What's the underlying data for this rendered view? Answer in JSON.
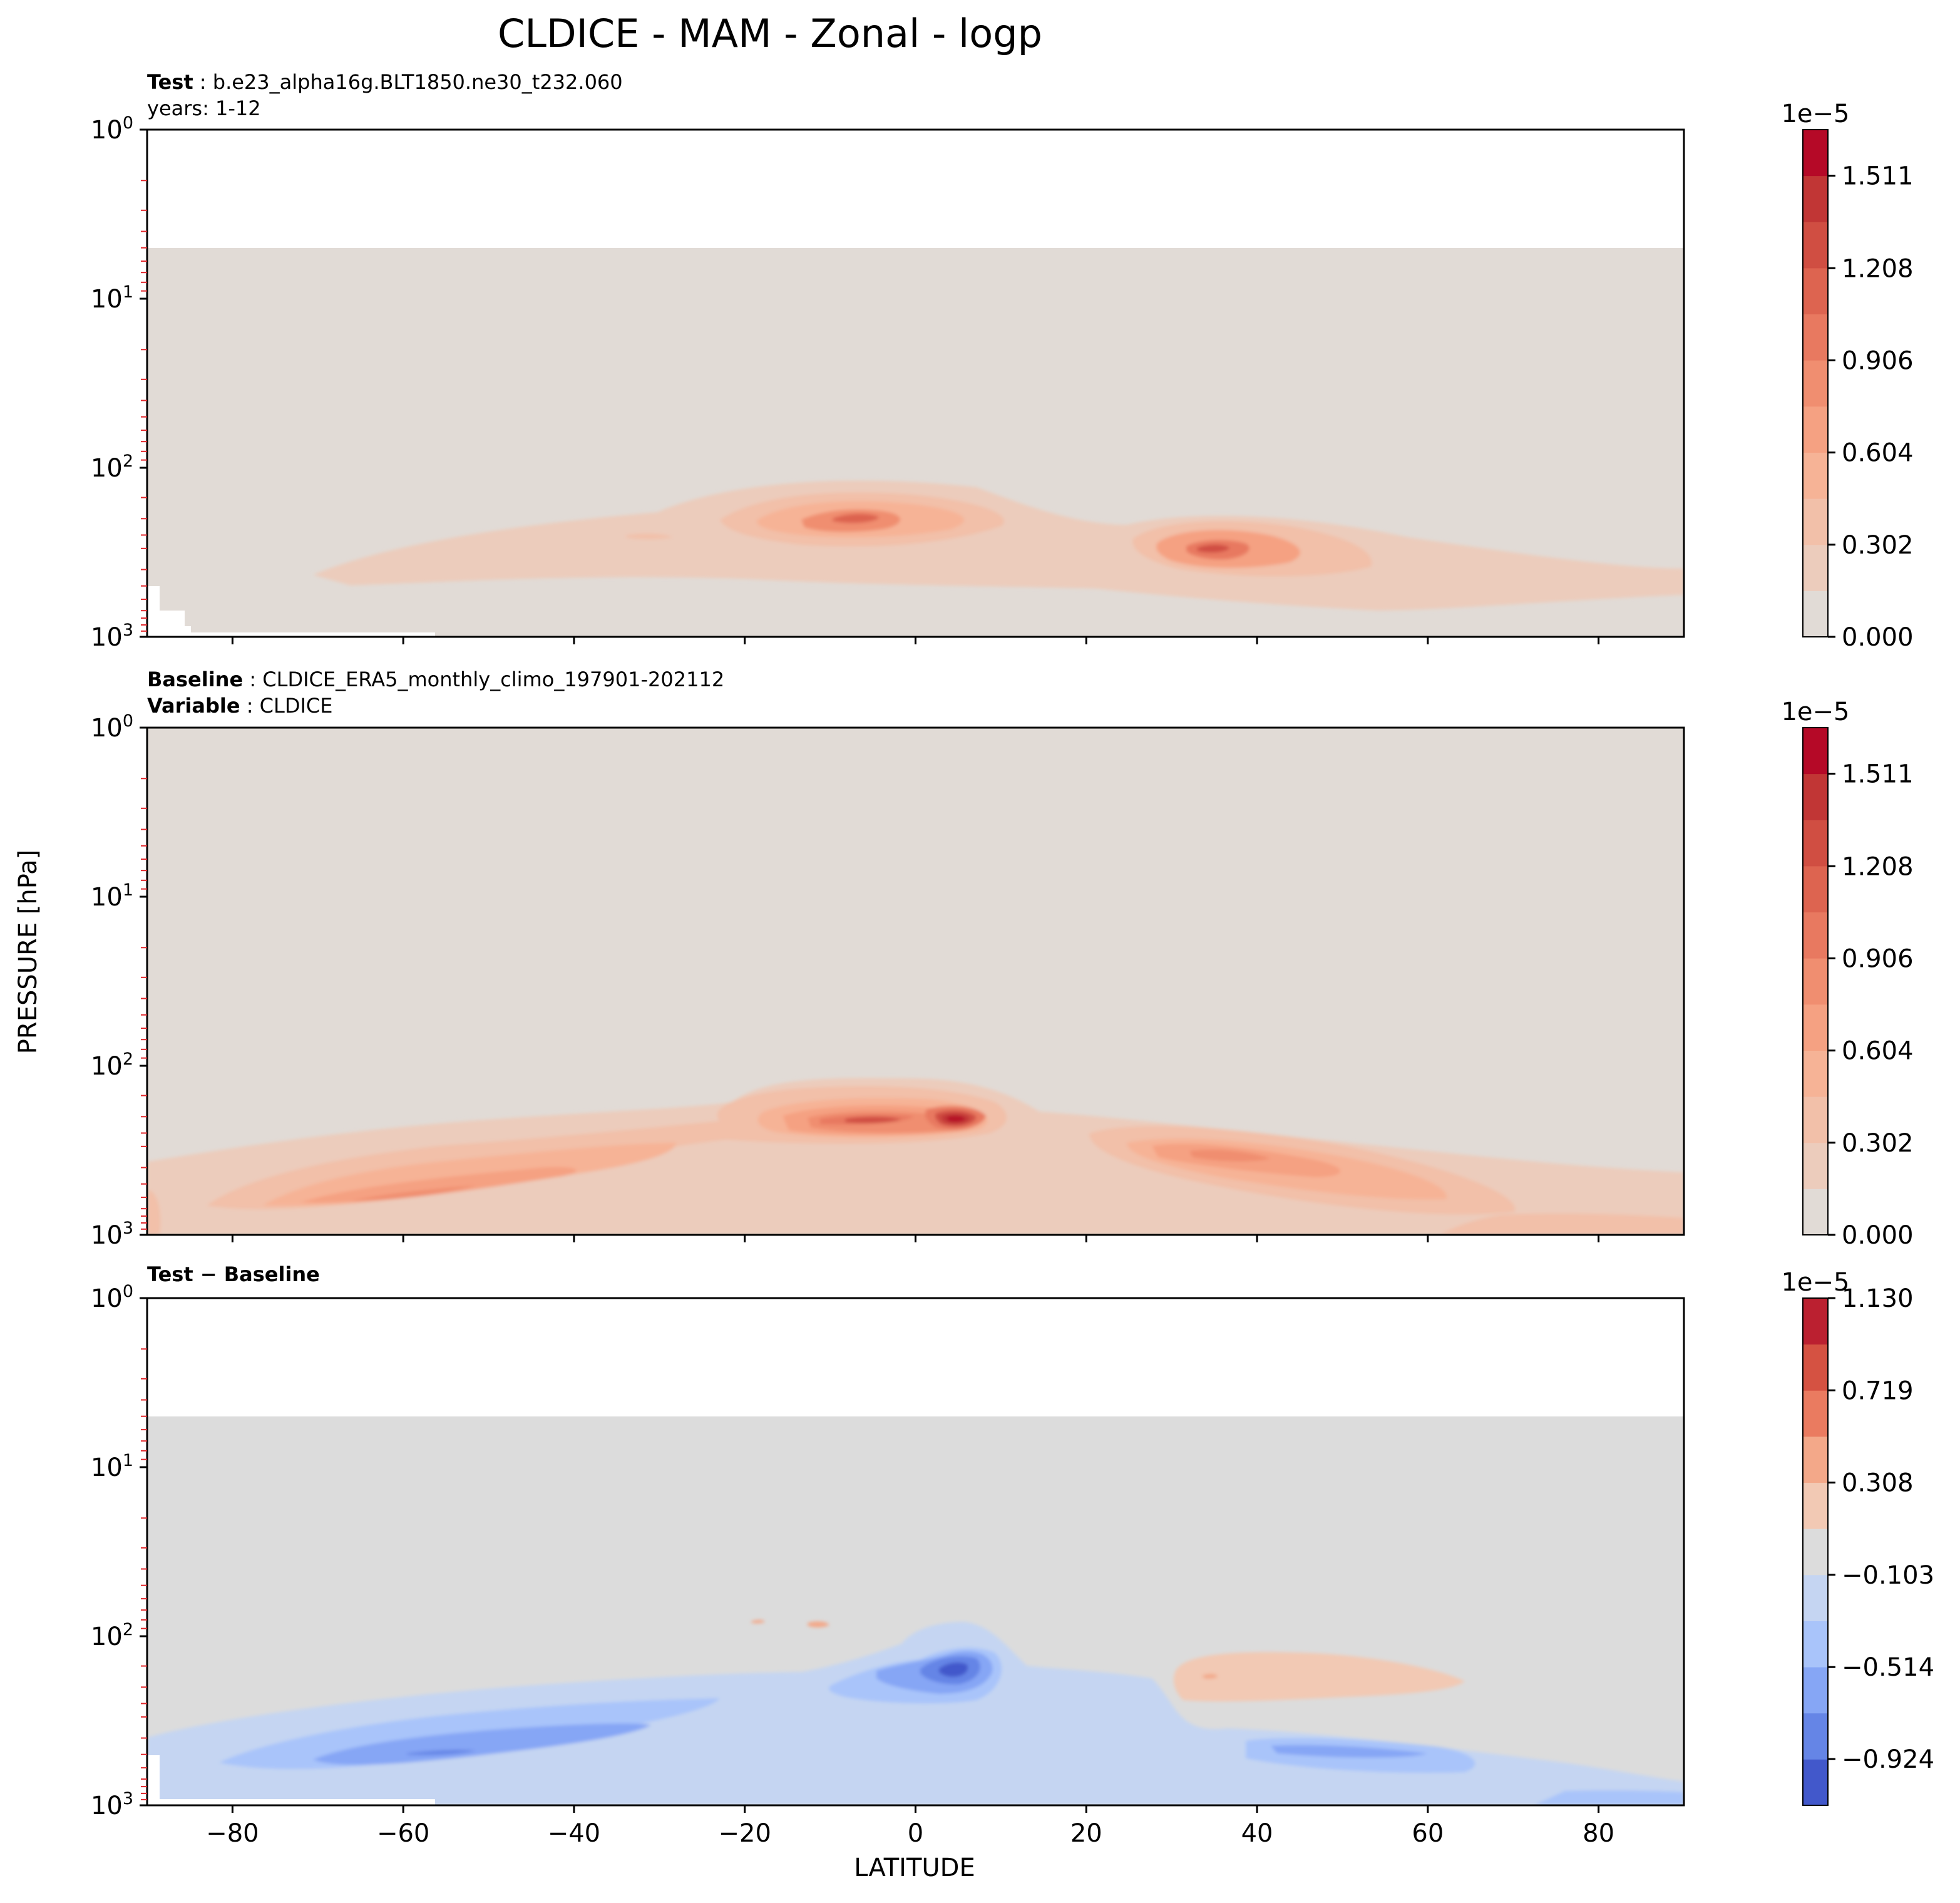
{
  "title": "CLDICE - MAM - Zonal - logp",
  "ylabel": "PRESSURE [hPa]",
  "xlabel": "LATITUDE",
  "panels": [
    {
      "label1_bold": "Test",
      "label1_text": "b.e23_alpha16g.BLT1850.ne30_t232.060",
      "label2_bold": "",
      "label2_text": "years: 1-12",
      "background": "#e1dbd6",
      "colorbar": {
        "exponent": "1e−5",
        "ticks": [
          "1.511",
          "1.208",
          "0.906",
          "0.604",
          "0.302",
          "0.000"
        ]
      }
    },
    {
      "label1_bold": "Baseline",
      "label1_text": "CLDICE_ERA5_monthly_climo_197901-202112",
      "label2_bold": "Variable",
      "label2_text": "CLDICE",
      "background": "#e1dbd6",
      "colorbar": {
        "exponent": "1e−5",
        "ticks": [
          "1.511",
          "1.208",
          "0.906",
          "0.604",
          "0.302",
          "0.000"
        ]
      }
    },
    {
      "label1_bold": "Test − Baseline",
      "label1_text": "",
      "label2_bold": "",
      "label2_text": "",
      "background": "#dcdcdc",
      "colorbar": {
        "exponent": "1e−5",
        "ticks": [
          "1.130",
          "0.719",
          "0.308",
          "−0.103",
          "−0.514",
          "−0.924"
        ]
      }
    }
  ],
  "chart_data": {
    "type": "contour",
    "x_axis": {
      "label": "LATITUDE",
      "range": [
        -90,
        90
      ],
      "ticks": [
        "−80",
        "−60",
        "−40",
        "−20",
        "0",
        "20",
        "40",
        "60",
        "80"
      ],
      "tick_values": [
        -80,
        -60,
        -40,
        -20,
        0,
        20,
        40,
        60,
        80
      ]
    },
    "y_axis": {
      "label": "PRESSURE [hPa]",
      "scale": "log",
      "inverted": true,
      "range": [
        1,
        1000
      ],
      "ticks": [
        1,
        10,
        100,
        1000
      ]
    },
    "panels": [
      {
        "name": "Test",
        "data_top_hPa": 5,
        "colorbar_levels": [
          0.0,
          0.151,
          0.302,
          0.453,
          0.604,
          0.755,
          0.906,
          1.057,
          1.208,
          1.359,
          1.511,
          1.662
        ],
        "colorbar_scale": "1e-5",
        "features": [
          {
            "lat": -6,
            "pressure_hPa": 220,
            "max_value": 1.2
          },
          {
            "lat": 35,
            "pressure_hPa": 330,
            "max_value": 1.0
          }
        ]
      },
      {
        "name": "Baseline",
        "data_top_hPa": 1,
        "colorbar_levels": [
          0.0,
          0.151,
          0.302,
          0.453,
          0.604,
          0.755,
          0.906,
          1.057,
          1.208,
          1.359,
          1.511,
          1.662
        ],
        "colorbar_scale": "1e-5",
        "features": [
          {
            "lat": 5,
            "pressure_hPa": 240,
            "max_value": 1.6
          },
          {
            "lat": -3,
            "pressure_hPa": 240,
            "max_value": 1.4
          },
          {
            "lat": -55,
            "pressure_hPa": 500,
            "max_value": 0.8
          },
          {
            "lat": 38,
            "pressure_hPa": 350,
            "max_value": 0.9
          }
        ]
      },
      {
        "name": "Test − Baseline",
        "data_top_hPa": 5,
        "colorbar_levels": [
          -1.13,
          -0.924,
          -0.719,
          -0.514,
          -0.308,
          -0.103,
          0.103,
          0.308,
          0.514,
          0.719,
          0.924,
          1.13
        ],
        "colorbar_scale": "1e-5",
        "features": [
          {
            "lat": 5,
            "pressure_hPa": 240,
            "min_value": -1.0
          },
          {
            "lat": -55,
            "pressure_hPa": 550,
            "min_value": -0.6
          },
          {
            "lat": 48,
            "pressure_hPa": 600,
            "min_value": -0.5
          },
          {
            "lat": 45,
            "pressure_hPa": 280,
            "max_value": 0.2
          }
        ]
      }
    ],
    "colors": {
      "seq": [
        "#e1dbd6",
        "#ecccbc",
        "#f2c0a9",
        "#f6b396",
        "#f5a182",
        "#f08e70",
        "#e87960",
        "#dd6450",
        "#d04e42",
        "#c13635",
        "#b50927"
      ],
      "div_blue": [
        "#4258cb",
        "#6585e6",
        "#86a6f5",
        "#a9c4fa",
        "#c5d5f2"
      ],
      "div_red": [
        "#f2c9b4",
        "#f3a889",
        "#ea7b60",
        "#d55242",
        "#bb2030"
      ]
    }
  }
}
